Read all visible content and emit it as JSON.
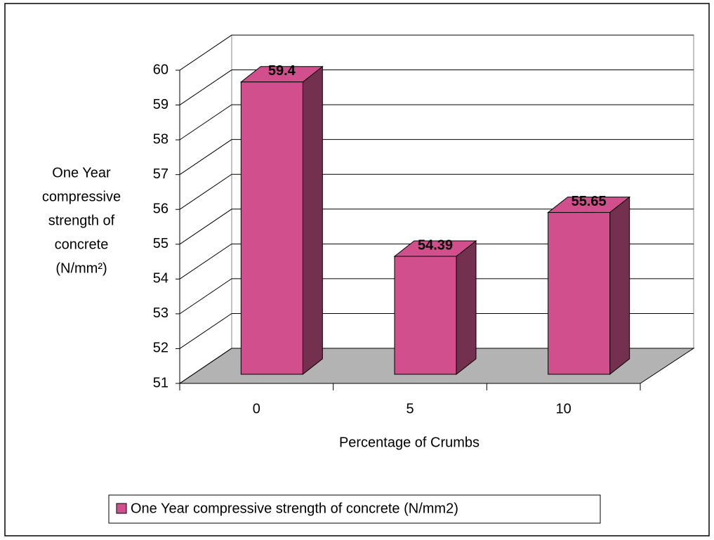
{
  "chart_data": {
    "type": "bar3d",
    "categories": [
      "0",
      "5",
      "10"
    ],
    "series": [
      {
        "name": "One Year compressive strength of concrete (N/mm2)",
        "color": "#d14f8d",
        "side_color": "#73314f",
        "values": [
          59.4,
          54.39,
          55.65
        ]
      }
    ],
    "ylim": [
      51,
      60
    ],
    "yticks": [
      51,
      52,
      53,
      54,
      55,
      56,
      57,
      58,
      59,
      60
    ],
    "xlabel": "Percentage of Crumbs",
    "ylabel": [
      "One Year",
      "compressive",
      "strength of",
      "concrete",
      "(N/mm²)"
    ],
    "grid": true,
    "legend": "bottom"
  }
}
